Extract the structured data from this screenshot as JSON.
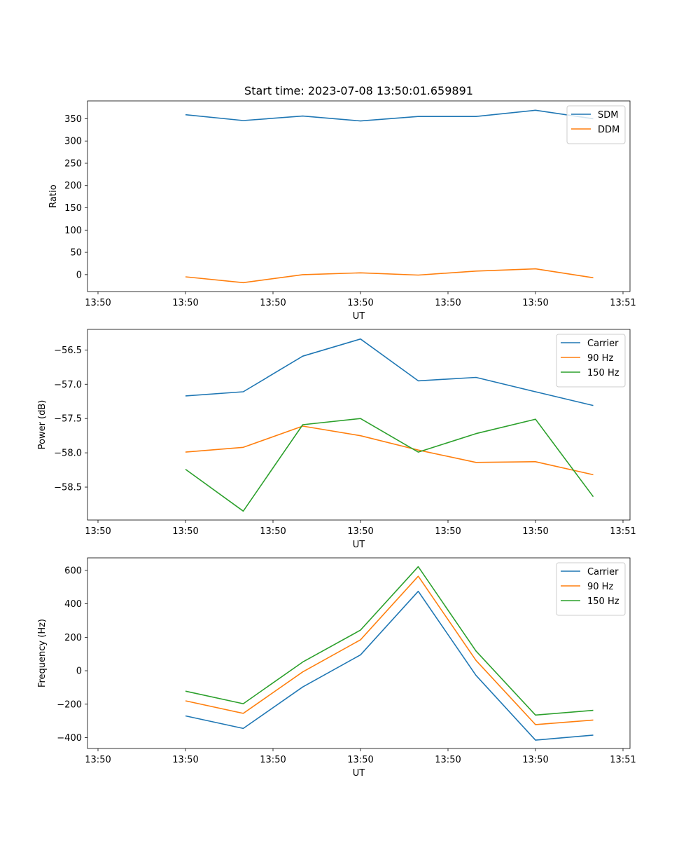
{
  "colors": {
    "blue": "#1f77b4",
    "orange": "#ff7f0e",
    "green": "#2ca02c"
  },
  "chart_data": [
    {
      "type": "line",
      "title": "Start time: 2023-07-08 13:50:01.659891",
      "xlabel": "UT",
      "ylabel": "Ratio",
      "x": [
        0.56,
        0.89,
        1.23,
        1.56,
        1.89,
        2.22,
        2.56,
        2.89
      ],
      "xlim": [
        0,
        3.1
      ],
      "x_ticks": [
        0.06,
        0.56,
        1.06,
        1.56,
        2.06,
        2.56,
        3.06
      ],
      "x_tick_labels": [
        "13:50",
        "13:50",
        "13:50",
        "13:50",
        "13:50",
        "13:50",
        "13:51"
      ],
      "ylim": [
        -38,
        390
      ],
      "y_ticks": [
        0,
        50,
        100,
        150,
        200,
        250,
        300,
        350
      ],
      "y_tick_labels": [
        "0",
        "50",
        "100",
        "150",
        "200",
        "250",
        "300",
        "350"
      ],
      "legend_position": "top-right",
      "series": [
        {
          "name": "SDM",
          "color": "blue",
          "values": [
            359,
            346,
            356,
            345,
            355,
            355,
            369,
            350
          ]
        },
        {
          "name": "DDM",
          "color": "orange",
          "values": [
            -5,
            -18,
            0,
            4,
            -1,
            8,
            13,
            -7
          ]
        }
      ]
    },
    {
      "type": "line",
      "title": "",
      "xlabel": "UT",
      "ylabel": "Power (dB)",
      "x": [
        0.56,
        0.89,
        1.23,
        1.56,
        1.89,
        2.22,
        2.56,
        2.89
      ],
      "xlim": [
        0,
        3.1
      ],
      "x_ticks": [
        0.06,
        0.56,
        1.06,
        1.56,
        2.06,
        2.56,
        3.06
      ],
      "x_tick_labels": [
        "13:50",
        "13:50",
        "13:50",
        "13:50",
        "13:50",
        "13:50",
        "13:51"
      ],
      "ylim": [
        -58.98,
        -56.2
      ],
      "y_ticks": [
        -58.5,
        -58.0,
        -57.5,
        -57.0,
        -56.5
      ],
      "y_tick_labels": [
        "−58.5",
        "−58.0",
        "−57.5",
        "−57.0",
        "−56.5"
      ],
      "legend_position": "top-right",
      "series": [
        {
          "name": "Carrier",
          "color": "blue",
          "values": [
            -57.17,
            -57.11,
            -56.59,
            -56.34,
            -56.95,
            -56.9,
            -57.11,
            -57.31
          ]
        },
        {
          "name": "90 Hz",
          "color": "orange",
          "values": [
            -57.99,
            -57.92,
            -57.61,
            -57.75,
            -57.96,
            -58.14,
            -58.13,
            -58.32
          ]
        },
        {
          "name": "150 Hz",
          "color": "green",
          "values": [
            -58.24,
            -58.85,
            -57.59,
            -57.5,
            -57.99,
            -57.72,
            -57.51,
            -58.64
          ]
        }
      ]
    },
    {
      "type": "line",
      "title": "",
      "xlabel": "UT",
      "ylabel": "Frequency (Hz)",
      "x": [
        0.56,
        0.89,
        1.23,
        1.56,
        1.89,
        2.22,
        2.56,
        2.89
      ],
      "xlim": [
        0,
        3.1
      ],
      "x_ticks": [
        0.06,
        0.56,
        1.06,
        1.56,
        2.06,
        2.56,
        3.06
      ],
      "x_tick_labels": [
        "13:50",
        "13:50",
        "13:50",
        "13:50",
        "13:50",
        "13:50",
        "13:51"
      ],
      "ylim": [
        -465,
        675
      ],
      "y_ticks": [
        -400,
        -200,
        0,
        200,
        400,
        600
      ],
      "y_tick_labels": [
        "−400",
        "−200",
        "0",
        "200",
        "400",
        "600"
      ],
      "legend_position": "top-right",
      "series": [
        {
          "name": "Carrier",
          "color": "blue",
          "values": [
            -270,
            -345,
            -97,
            95,
            475,
            -28,
            -415,
            -385
          ]
        },
        {
          "name": "90 Hz",
          "color": "orange",
          "values": [
            -180,
            -255,
            -7,
            185,
            565,
            62,
            -322,
            -295
          ]
        },
        {
          "name": "150 Hz",
          "color": "green",
          "values": [
            -122,
            -197,
            52,
            243,
            622,
            118,
            -265,
            -237
          ]
        }
      ]
    }
  ]
}
